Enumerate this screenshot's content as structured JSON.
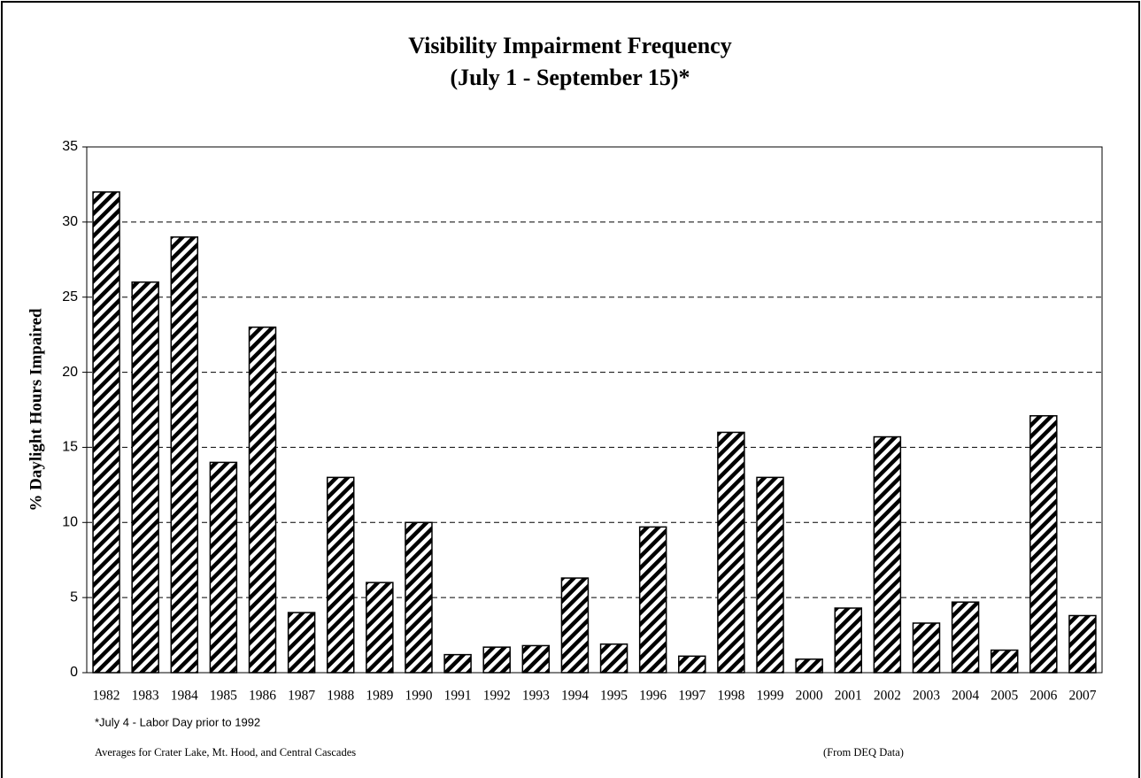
{
  "chart_data": {
    "type": "bar",
    "title": "Visibility Impairment Frequency",
    "subtitle": "(July 1 - September 15)*",
    "y_label": "% Daylight Hours Impaired",
    "annotations": [
      "*July 4 - Labor Day prior to 1992",
      "Averages for Crater Lake, Mt. Hood, and Central Cascades",
      "(From DEQ Data)"
    ],
    "categories": [
      "1982",
      "1983",
      "1984",
      "1985",
      "1986",
      "1987",
      "1988",
      "1989",
      "1990",
      "1991",
      "1992",
      "1993",
      "1994",
      "1995",
      "1996",
      "1997",
      "1998",
      "1999",
      "2000",
      "2001",
      "2002",
      "2003",
      "2004",
      "2005",
      "2006",
      "2007"
    ],
    "values": [
      32,
      26,
      29,
      14,
      23,
      4,
      13,
      6,
      10,
      1.2,
      1.7,
      1.8,
      6.3,
      1.9,
      9.7,
      1.1,
      16,
      13,
      0.9,
      4.3,
      15.7,
      3.3,
      4.7,
      1.5,
      17.1,
      3.8
    ],
    "color": "#000000",
    "ylim": [
      0,
      35
    ],
    "yticks": [
      0,
      5,
      10,
      15,
      20,
      25,
      30,
      35
    ],
    "grid": true
  }
}
